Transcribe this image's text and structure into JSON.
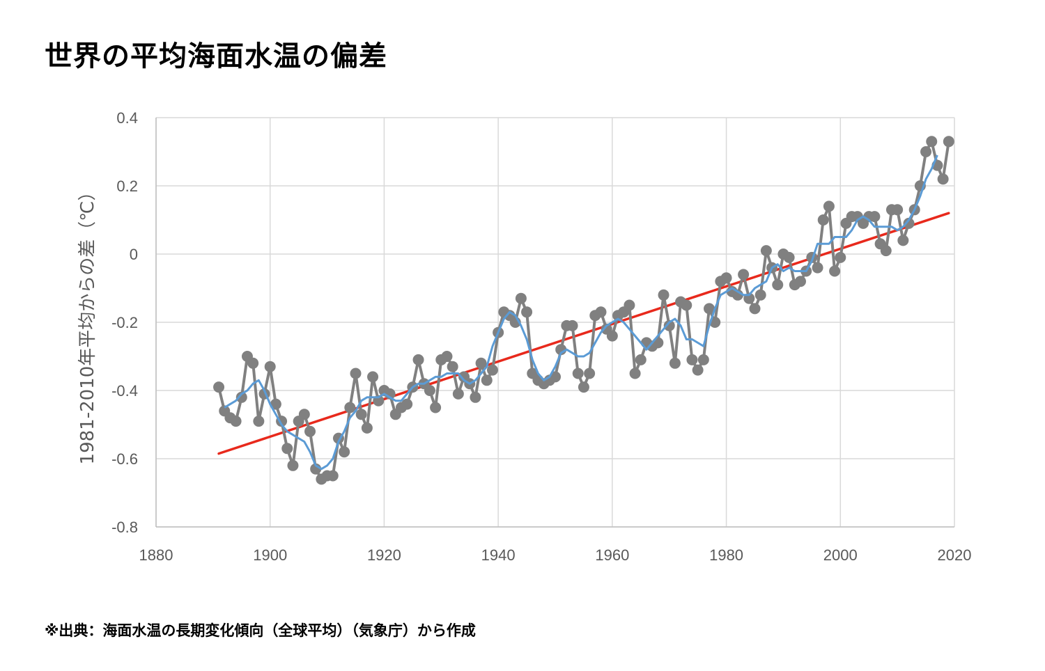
{
  "title": "世界の平均海面水温の偏差",
  "source": "※出典：海面水温の長期変化傾向（全球平均）（気象庁）から作成",
  "chart_data": {
    "type": "line",
    "title": "世界の平均海面水温の偏差",
    "xlabel": "",
    "ylabel": "1981-2010年平均からの差（℃）",
    "xlim": [
      1880,
      2020
    ],
    "ylim": [
      -0.8,
      0.4
    ],
    "xticks": [
      1880,
      1900,
      1920,
      1940,
      1960,
      1980,
      2000,
      2020
    ],
    "yticks": [
      0.4,
      0.2,
      0,
      -0.2,
      -0.4,
      -0.6,
      -0.8
    ],
    "ytick_labels": [
      "0.4",
      "0.2",
      "0",
      "-0.2",
      "-0.4",
      "-0.6",
      "-0.8"
    ],
    "grid": true,
    "legend": "none",
    "colors": {
      "annual": "#808080",
      "smoothed": "#5b9bd5",
      "trend": "#e8291c",
      "grid": "#d9d9d9",
      "axis": "#bfbfbf"
    },
    "series": [
      {
        "type": "line-marker",
        "x": [
          1891,
          1892,
          1893,
          1894,
          1895,
          1896,
          1897,
          1898,
          1899,
          1900,
          1901,
          1902,
          1903,
          1904,
          1905,
          1906,
          1907,
          1908,
          1909,
          1910,
          1911,
          1912,
          1913,
          1914,
          1915,
          1916,
          1917,
          1918,
          1919,
          1920,
          1921,
          1922,
          1923,
          1924,
          1925,
          1926,
          1927,
          1928,
          1929,
          1930,
          1931,
          1932,
          1933,
          1934,
          1935,
          1936,
          1937,
          1938,
          1939,
          1940,
          1941,
          1942,
          1943,
          1944,
          1945,
          1946,
          1947,
          1948,
          1949,
          1950,
          1951,
          1952,
          1953,
          1954,
          1955,
          1956,
          1957,
          1958,
          1959,
          1960,
          1961,
          1962,
          1963,
          1964,
          1965,
          1966,
          1967,
          1968,
          1969,
          1970,
          1971,
          1972,
          1973,
          1974,
          1975,
          1976,
          1977,
          1978,
          1979,
          1980,
          1981,
          1982,
          1983,
          1984,
          1985,
          1986,
          1987,
          1988,
          1989,
          1990,
          1991,
          1992,
          1993,
          1994,
          1995,
          1996,
          1997,
          1998,
          1999,
          2000,
          2001,
          2002,
          2003,
          2004,
          2005,
          2006,
          2007,
          2008,
          2009,
          2010,
          2011,
          2012,
          2013,
          2014,
          2015,
          2016,
          2017,
          2018,
          2019
        ],
        "y": [
          -0.39,
          -0.46,
          -0.48,
          -0.49,
          -0.42,
          -0.3,
          -0.32,
          -0.49,
          -0.41,
          -0.33,
          -0.44,
          -0.49,
          -0.57,
          -0.62,
          -0.49,
          -0.47,
          -0.52,
          -0.63,
          -0.66,
          -0.65,
          -0.65,
          -0.54,
          -0.58,
          -0.45,
          -0.35,
          -0.47,
          -0.51,
          -0.36,
          -0.43,
          -0.4,
          -0.41,
          -0.47,
          -0.45,
          -0.44,
          -0.39,
          -0.31,
          -0.38,
          -0.4,
          -0.45,
          -0.31,
          -0.3,
          -0.33,
          -0.41,
          -0.36,
          -0.38,
          -0.42,
          -0.32,
          -0.37,
          -0.34,
          -0.23,
          -0.17,
          -0.18,
          -0.2,
          -0.13,
          -0.17,
          -0.35,
          -0.37,
          -0.38,
          -0.37,
          -0.36,
          -0.28,
          -0.21,
          -0.21,
          -0.35,
          -0.39,
          -0.35,
          -0.18,
          -0.17,
          -0.22,
          -0.24,
          -0.18,
          -0.17,
          -0.15,
          -0.35,
          -0.31,
          -0.26,
          -0.27,
          -0.26,
          -0.12,
          -0.21,
          -0.32,
          -0.14,
          -0.15,
          -0.31,
          -0.34,
          -0.31,
          -0.16,
          -0.2,
          -0.08,
          -0.07,
          -0.11,
          -0.12,
          -0.06,
          -0.13,
          -0.16,
          -0.12,
          0.01,
          -0.04,
          -0.09,
          0.0,
          -0.01,
          -0.09,
          -0.08,
          -0.05,
          -0.01,
          -0.04,
          0.1,
          0.14,
          -0.05,
          -0.01,
          0.09,
          0.11,
          0.11,
          0.09,
          0.11,
          0.11,
          0.03,
          0.01,
          0.13,
          0.13,
          0.04,
          0.09,
          0.13,
          0.2,
          0.3,
          0.33,
          0.26,
          0.22,
          0.33
        ]
      },
      {
        "type": "line",
        "x": [
          1892,
          1893,
          1894,
          1895,
          1896,
          1897,
          1898,
          1899,
          1900,
          1901,
          1902,
          1903,
          1904,
          1905,
          1906,
          1907,
          1908,
          1909,
          1910,
          1911,
          1912,
          1913,
          1914,
          1915,
          1916,
          1917,
          1918,
          1919,
          1920,
          1921,
          1922,
          1923,
          1924,
          1925,
          1926,
          1927,
          1928,
          1929,
          1930,
          1931,
          1932,
          1933,
          1934,
          1935,
          1936,
          1937,
          1938,
          1939,
          1940,
          1941,
          1942,
          1943,
          1944,
          1945,
          1946,
          1947,
          1948,
          1949,
          1950,
          1951,
          1952,
          1953,
          1954,
          1955,
          1956,
          1957,
          1958,
          1959,
          1960,
          1961,
          1962,
          1963,
          1964,
          1965,
          1966,
          1967,
          1968,
          1969,
          1970,
          1971,
          1972,
          1973,
          1974,
          1975,
          1976,
          1977,
          1978,
          1979,
          1980,
          1981,
          1982,
          1983,
          1984,
          1985,
          1986,
          1987,
          1988,
          1989,
          1990,
          1991,
          1992,
          1993,
          1994,
          1995,
          1996,
          1997,
          1998,
          1999,
          2000,
          2001,
          2002,
          2003,
          2004,
          2005,
          2006,
          2007,
          2008,
          2009,
          2010,
          2011,
          2012,
          2013,
          2014,
          2015,
          2016,
          2017
        ],
        "y": [
          -0.45,
          -0.44,
          -0.43,
          -0.41,
          -0.4,
          -0.38,
          -0.37,
          -0.4,
          -0.44,
          -0.47,
          -0.5,
          -0.52,
          -0.53,
          -0.54,
          -0.55,
          -0.58,
          -0.62,
          -0.63,
          -0.62,
          -0.6,
          -0.55,
          -0.52,
          -0.48,
          -0.46,
          -0.43,
          -0.42,
          -0.42,
          -0.42,
          -0.41,
          -0.42,
          -0.43,
          -0.43,
          -0.41,
          -0.39,
          -0.38,
          -0.38,
          -0.37,
          -0.36,
          -0.36,
          -0.35,
          -0.35,
          -0.35,
          -0.37,
          -0.38,
          -0.37,
          -0.35,
          -0.33,
          -0.27,
          -0.23,
          -0.19,
          -0.17,
          -0.18,
          -0.21,
          -0.25,
          -0.31,
          -0.35,
          -0.37,
          -0.36,
          -0.33,
          -0.29,
          -0.28,
          -0.29,
          -0.3,
          -0.3,
          -0.29,
          -0.26,
          -0.23,
          -0.21,
          -0.2,
          -0.19,
          -0.2,
          -0.22,
          -0.24,
          -0.26,
          -0.28,
          -0.26,
          -0.24,
          -0.22,
          -0.2,
          -0.19,
          -0.21,
          -0.25,
          -0.25,
          -0.26,
          -0.27,
          -0.21,
          -0.16,
          -0.12,
          -0.11,
          -0.1,
          -0.11,
          -0.12,
          -0.12,
          -0.1,
          -0.09,
          -0.08,
          -0.04,
          -0.03,
          -0.05,
          -0.04,
          -0.05,
          -0.05,
          -0.05,
          -0.02,
          0.03,
          0.03,
          0.03,
          0.05,
          0.05,
          0.05,
          0.07,
          0.1,
          0.11,
          0.1,
          0.08,
          0.08,
          0.08,
          0.08,
          0.07,
          0.08,
          0.1,
          0.13,
          0.17,
          0.22,
          0.25,
          0.29
        ]
      },
      {
        "type": "trend",
        "x": [
          1891,
          2019
        ],
        "y": [
          -0.585,
          0.12
        ]
      }
    ]
  }
}
